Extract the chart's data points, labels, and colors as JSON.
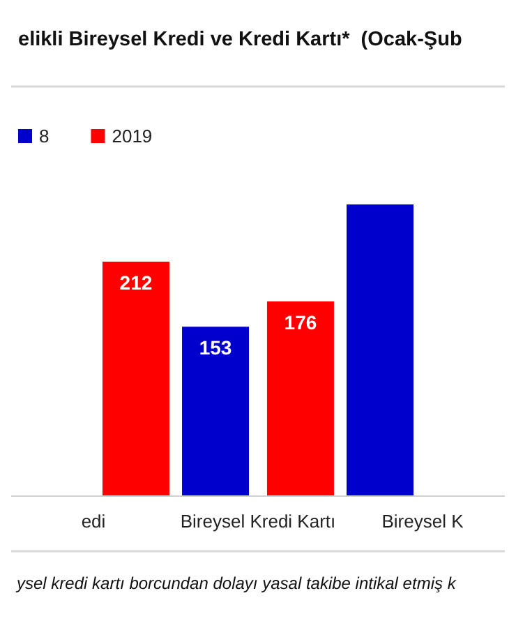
{
  "chart_data": {
    "type": "bar",
    "title": "elikli Bireysel Kredi ve Kredi Kartı*  (Ocak-Şub",
    "categories": [
      "edi",
      "Bireysel Kredi Kartı",
      "Bireysel K"
    ],
    "series": [
      {
        "name": "8",
        "color": "#0000cc",
        "values": [
          null,
          153,
          264
        ],
        "value_labels": [
          null,
          "153",
          null
        ]
      },
      {
        "name": "2019",
        "color": "#ff0000",
        "values": [
          212,
          176,
          null
        ],
        "value_labels": [
          "212",
          "176",
          null
        ]
      }
    ],
    "legend": "top left",
    "annotations": [
      "ysel kredi kartı borcundan dolayı yasal takibe intikal etmiş k"
    ]
  }
}
